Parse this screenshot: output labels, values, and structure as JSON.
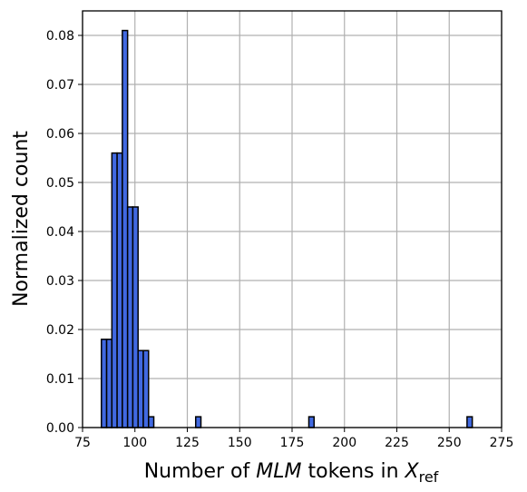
{
  "chart_data": {
    "type": "bar",
    "subtype": "histogram",
    "title": "",
    "xlabel": {
      "before": "Number of ",
      "italic": "MLM",
      "after": " tokens in ",
      "math_symbol": "X",
      "math_subscript": "ref"
    },
    "ylabel": "Normalized count",
    "xlim": [
      75,
      275
    ],
    "ylim": [
      0,
      0.085
    ],
    "xticks": [
      75,
      100,
      125,
      150,
      175,
      200,
      225,
      250,
      275
    ],
    "xtick_labels": [
      "75",
      "100",
      "125",
      "150",
      "175",
      "200",
      "225",
      "250",
      "275"
    ],
    "yticks": [
      0.0,
      0.01,
      0.02,
      0.03,
      0.04,
      0.05,
      0.06,
      0.07,
      0.08
    ],
    "ytick_labels": [
      "0.00",
      "0.01",
      "0.02",
      "0.03",
      "0.04",
      "0.05",
      "0.06",
      "0.07",
      "0.08"
    ],
    "grid": true,
    "bar_color": "#4169e1",
    "edge_color": "#000000",
    "bins": [
      {
        "x0": 84,
        "x1": 86.5,
        "value": 0.018
      },
      {
        "x0": 86.5,
        "x1": 89,
        "value": 0.018
      },
      {
        "x0": 89,
        "x1": 91.5,
        "value": 0.056
      },
      {
        "x0": 91.5,
        "x1": 94,
        "value": 0.056
      },
      {
        "x0": 94,
        "x1": 96.5,
        "value": 0.081
      },
      {
        "x0": 96.5,
        "x1": 99,
        "value": 0.045
      },
      {
        "x0": 99,
        "x1": 101.5,
        "value": 0.045
      },
      {
        "x0": 101.5,
        "x1": 104,
        "value": 0.0157
      },
      {
        "x0": 104,
        "x1": 106.5,
        "value": 0.0157
      },
      {
        "x0": 106.5,
        "x1": 109,
        "value": 0.0022
      },
      {
        "x0": 129,
        "x1": 131.5,
        "value": 0.0022
      },
      {
        "x0": 183,
        "x1": 185.5,
        "value": 0.0022
      },
      {
        "x0": 258.5,
        "x1": 261,
        "value": 0.0022
      }
    ]
  }
}
